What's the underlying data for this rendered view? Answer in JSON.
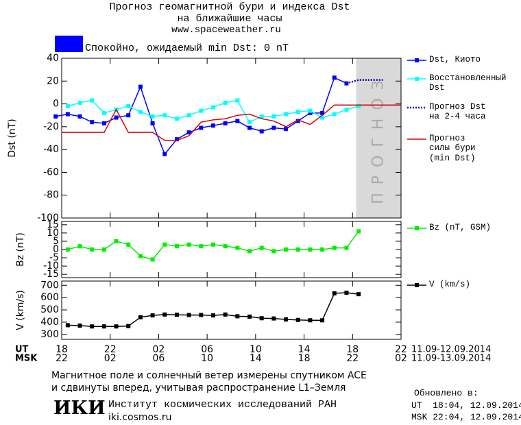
{
  "header": {
    "title": "Прогноз геомагнитной бури и индекса Dst\nна ближайшие часы",
    "url": "www.spaceweather.ru",
    "status": "Спокойно, ожидаемый min Dst: 0 nT",
    "status_color": "#0000ff"
  },
  "chart_data": [
    {
      "type": "line",
      "y_label": "Dst (nT)",
      "xlim": [
        0,
        28
      ],
      "ylim": [
        -100,
        40
      ],
      "yticks": [
        -100,
        -80,
        -60,
        -40,
        -20,
        0,
        20,
        40
      ],
      "shaded_region": [
        24.3,
        28
      ],
      "shaded_label": "ПРОГНОЗ",
      "series": [
        {
          "name": "Dst, Киото",
          "color": "#0000ff",
          "marker": "square",
          "line_style": "solid",
          "x": [
            -0.5,
            0.5,
            1.5,
            2.5,
            3.5,
            4.5,
            5.5,
            6.5,
            7.5,
            8.5,
            9.5,
            10.5,
            11.5,
            12.5,
            13.5,
            14.5,
            15.5,
            16.5,
            17.5,
            18.5,
            19.5,
            20.5,
            21.5,
            22.5,
            23.5
          ],
          "values": [
            -11,
            -9,
            -11,
            -16,
            -17,
            -12,
            -10,
            15,
            -17,
            -44,
            -31,
            -25,
            -21,
            -19,
            -17,
            -15,
            -21,
            -24,
            -21,
            -22,
            -15,
            -8,
            -8,
            23,
            18
          ]
        },
        {
          "name": "Восстановленный\nDst",
          "color": "#00ffff",
          "marker": "square",
          "line_style": "solid",
          "x": [
            0.5,
            1.5,
            2.5,
            3.5,
            4.5,
            5.5,
            6.5,
            7.5,
            8.5,
            9.5,
            10.5,
            11.5,
            12.5,
            13.5,
            14.5,
            15.5,
            16.5,
            17.5,
            18.5,
            19.5,
            20.5,
            21.5,
            22.5,
            23.5,
            24.5
          ],
          "values": [
            -2,
            1,
            3,
            -8,
            -5,
            -2,
            -7,
            -11,
            -10,
            -13,
            -10,
            -6,
            -3,
            1,
            3,
            -16,
            -11,
            -11,
            -9,
            -7,
            -6,
            -12,
            -9,
            -5,
            -2
          ]
        },
        {
          "name": "Прогноз Dst\nна 2-4 часа",
          "color": "#0000aa",
          "marker": null,
          "line_style": "dotted",
          "x": [
            23.5,
            24.5,
            25.5,
            26.5
          ],
          "values": [
            18,
            21,
            21,
            21
          ]
        },
        {
          "name": "Прогноз\nсилы бури\n(min Dst)",
          "color": "#dd0000",
          "marker": null,
          "line_style": "solid",
          "x": [
            0,
            3.5,
            4.5,
            5.5,
            7.5,
            8.5,
            9.5,
            10.5,
            11.5,
            12.5,
            13.5,
            14.5,
            15.5,
            16.5,
            17.5,
            18.5,
            19.5,
            20.5,
            21.5,
            22.5,
            28
          ],
          "values": [
            -25,
            -25,
            -5,
            -25,
            -25,
            -32,
            -32,
            -28,
            -16,
            -14,
            -13,
            -10,
            -9,
            -13,
            -15,
            -20,
            -14,
            -18,
            -10,
            -1,
            -1
          ]
        }
      ]
    },
    {
      "type": "line",
      "y_label": "Bz (nT)",
      "xlim": [
        0,
        28
      ],
      "ylim": [
        -17,
        17
      ],
      "yticks": [
        -15,
        -10,
        -5,
        0,
        5,
        10,
        15
      ],
      "series": [
        {
          "name": "Bz (nT, GSM)",
          "color": "#00ee00",
          "marker": "square",
          "line_style": "solid",
          "x": [
            0.5,
            1.5,
            2.5,
            3.5,
            4.5,
            5.5,
            6.5,
            7.5,
            8.5,
            9.5,
            10.5,
            11.5,
            12.5,
            13.5,
            14.5,
            15.5,
            16.5,
            17.5,
            18.5,
            19.5,
            20.5,
            21.5,
            22.5,
            23.5,
            24.5
          ],
          "values": [
            0,
            2,
            0,
            0,
            5,
            3,
            -4,
            -6,
            3,
            2,
            3,
            2,
            3,
            2,
            1,
            -1,
            1,
            -1,
            0,
            0,
            0,
            0,
            1,
            1,
            11
          ]
        }
      ]
    },
    {
      "type": "line",
      "y_label": "V (km/s)",
      "xlim": [
        0,
        28
      ],
      "ylim": [
        260,
        735
      ],
      "yticks": [
        300,
        400,
        500,
        600,
        700
      ],
      "x_label": "UT",
      "x_label_2": "MSK",
      "x_dates": "11.09-12.09.2014",
      "x_dates_2": "11.09-13.09.2014",
      "xticks": [
        {
          "value": 0,
          "label": "18"
        },
        {
          "value": 4,
          "label": "22"
        },
        {
          "value": 8,
          "label": "02"
        },
        {
          "value": 12,
          "label": "06"
        },
        {
          "value": 16,
          "label": "10"
        },
        {
          "value": 20,
          "label": "14"
        },
        {
          "value": 24,
          "label": "18"
        },
        {
          "value": 28,
          "label": "22"
        }
      ],
      "xticks_2": [
        {
          "value": 0,
          "label": "22"
        },
        {
          "value": 4,
          "label": "02"
        },
        {
          "value": 8,
          "label": "06"
        },
        {
          "value": 12,
          "label": "10"
        },
        {
          "value": 16,
          "label": "14"
        },
        {
          "value": 20,
          "label": "18"
        },
        {
          "value": 24,
          "label": "22"
        },
        {
          "value": 28,
          "label": "02"
        }
      ],
      "series": [
        {
          "name": "V (km/s)",
          "color": "#000000",
          "marker": "square",
          "line_style": "solid",
          "x": [
            0.5,
            1.5,
            2.5,
            3.5,
            4.5,
            5.5,
            6.5,
            7.5,
            8.5,
            9.5,
            10.5,
            11.5,
            12.5,
            13.5,
            14.5,
            15.5,
            16.5,
            17.5,
            18.5,
            19.5,
            20.5,
            21.5,
            22.5,
            23.5,
            24.5
          ],
          "values": [
            375,
            372,
            365,
            365,
            365,
            368,
            440,
            455,
            462,
            460,
            458,
            458,
            455,
            462,
            448,
            445,
            432,
            430,
            422,
            418,
            415,
            415,
            635,
            640,
            628
          ]
        }
      ]
    }
  ],
  "footer": {
    "note": "Магнитное поле и солнечный ветер измерены спутником ACE\nи сдвинуты вперед, учитывая распространение L1–Земля",
    "logo": "ИКИ",
    "institute": "Институт космических исследований РАН",
    "site": "iki.cosmos.ru",
    "updated_label": "Обновлено в:",
    "updated_ut": "UT  18:04, 12.09.2014",
    "updated_msk": "MSK 22:04, 12.09.2014"
  }
}
